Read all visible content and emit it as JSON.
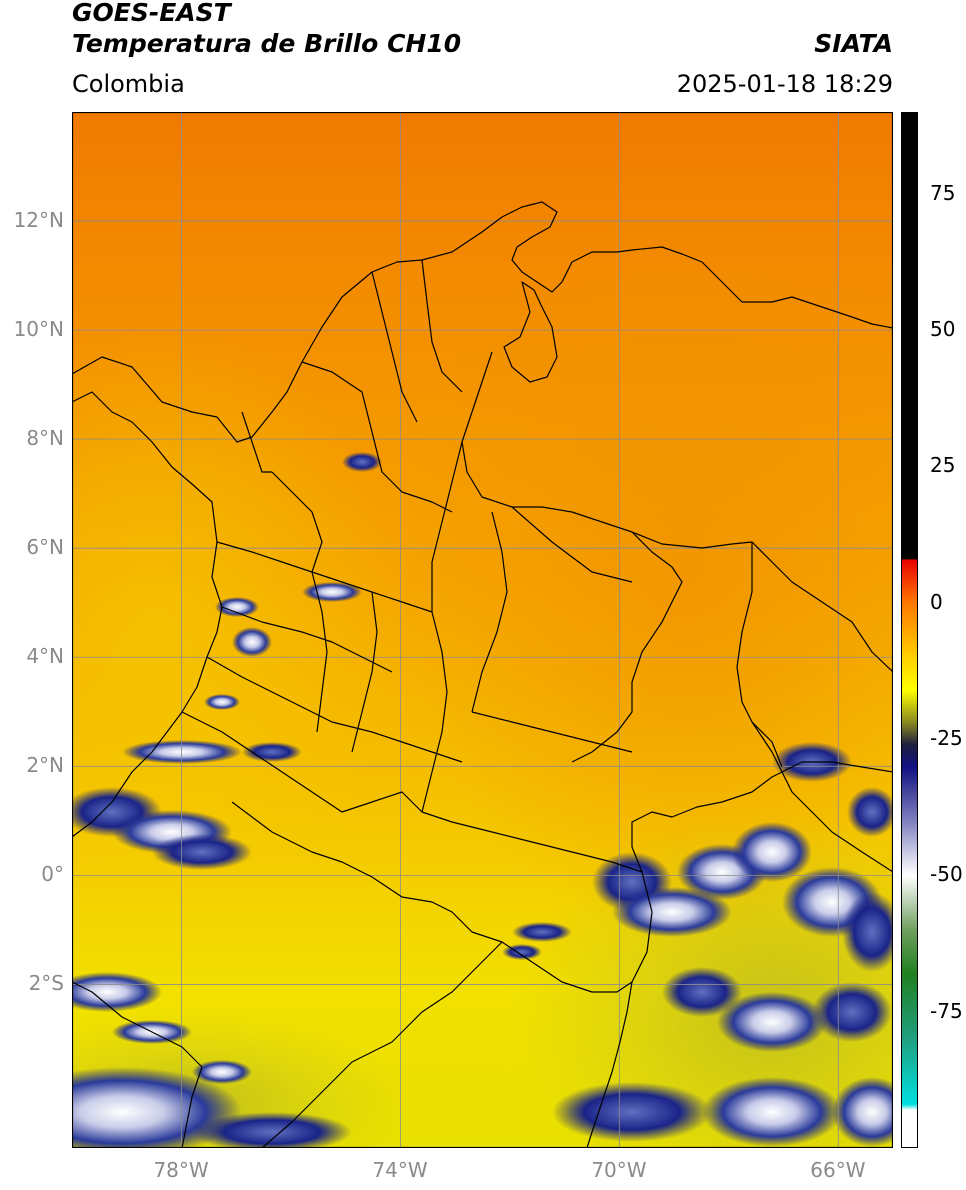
{
  "header": {
    "title_line1": "GOES-EAST",
    "title_line2": "Temperatura de Brillo CH10",
    "source": "SIATA",
    "region": "Colombia",
    "datetime": "2025-01-18 18:29"
  },
  "map": {
    "lon_range": [
      -80,
      -65
    ],
    "lat_range": [
      -5,
      14
    ],
    "lat_ticks": [
      {
        "value": 12,
        "label": "12°N"
      },
      {
        "value": 10,
        "label": "10°N"
      },
      {
        "value": 8,
        "label": "8°N"
      },
      {
        "value": 6,
        "label": "6°N"
      },
      {
        "value": 4,
        "label": "4°N"
      },
      {
        "value": 2,
        "label": "2°N"
      },
      {
        "value": 0,
        "label": "0°"
      },
      {
        "value": -2,
        "label": "2°S"
      }
    ],
    "lon_ticks": [
      {
        "value": -78,
        "label": "78°W"
      },
      {
        "value": -74,
        "label": "74°W"
      },
      {
        "value": -70,
        "label": "70°W"
      },
      {
        "value": -66,
        "label": "66°W"
      }
    ],
    "colors": {
      "background_warm": "#f5a000",
      "north_hot": "#f07a00",
      "south_yellow": "#f2e600",
      "cloud_blue": "#1a2a8a",
      "cloud_white": "#e8ecf5",
      "grid": "#8c8c8c",
      "border": "#000000"
    }
  },
  "colorbar": {
    "range": [
      -100,
      90
    ],
    "ticks": [
      {
        "value": 75,
        "label": "75"
      },
      {
        "value": 50,
        "label": "50"
      },
      {
        "value": 25,
        "label": "25"
      },
      {
        "value": 0,
        "label": "0"
      },
      {
        "value": -25,
        "label": "-25"
      },
      {
        "value": -50,
        "label": "-50"
      },
      {
        "value": -75,
        "label": "-75"
      }
    ],
    "stops": [
      {
        "value": 90,
        "color": "#000000"
      },
      {
        "value": 8,
        "color": "#000000"
      },
      {
        "value": 7.9,
        "color": "#e80000"
      },
      {
        "value": 0,
        "color": "#ff7800"
      },
      {
        "value": -10,
        "color": "#ffd000"
      },
      {
        "value": -16,
        "color": "#ffff00"
      },
      {
        "value": -22,
        "color": "#888820"
      },
      {
        "value": -26,
        "color": "#202040"
      },
      {
        "value": -30,
        "color": "#101080"
      },
      {
        "value": -40,
        "color": "#8080c0"
      },
      {
        "value": -50,
        "color": "#ffffff"
      },
      {
        "value": -60,
        "color": "#70a060"
      },
      {
        "value": -68,
        "color": "#208020"
      },
      {
        "value": -80,
        "color": "#20a080"
      },
      {
        "value": -92,
        "color": "#00e0e0"
      },
      {
        "value": -93,
        "color": "#ffffff"
      },
      {
        "value": -100,
        "color": "#ffffff"
      }
    ]
  }
}
